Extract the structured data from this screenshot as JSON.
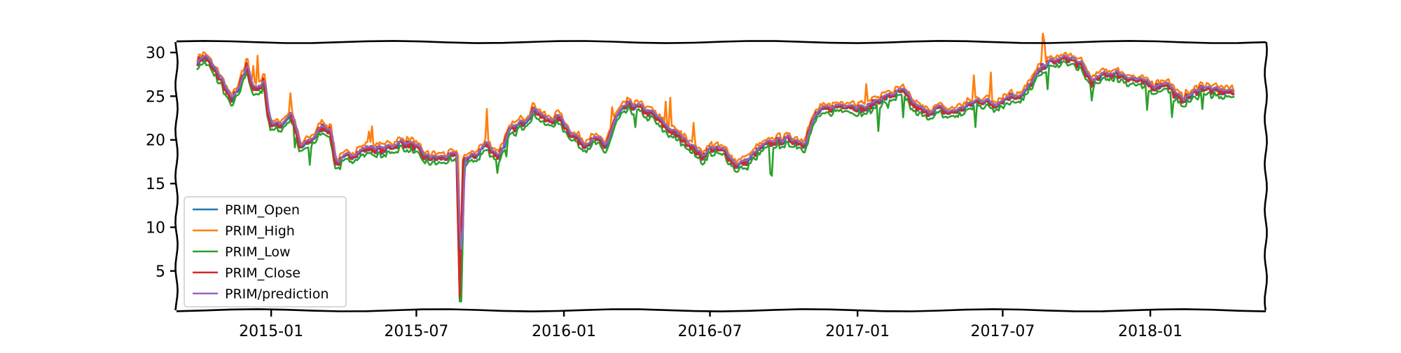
{
  "chart_data": {
    "type": "line",
    "title": "",
    "xlabel": "",
    "ylabel": "",
    "x_range": [
      "2014-09-05",
      "2018-05-25"
    ],
    "ylim": [
      0.5,
      31.2
    ],
    "y_ticks": [
      5,
      10,
      15,
      20,
      25,
      30
    ],
    "x_ticks": [
      "2015-01",
      "2015-07",
      "2016-01",
      "2016-07",
      "2017-01",
      "2017-07",
      "2018-01"
    ],
    "x_tick_dates": [
      "2015-01-01",
      "2015-07-01",
      "2016-01-01",
      "2016-07-01",
      "2017-01-01",
      "2017-07-01",
      "2018-01-01"
    ],
    "grid": false,
    "legend_position": "lower-left",
    "style": "xkcd",
    "colors": {
      "PRIM_Open": "#1f77b4",
      "PRIM_High": "#ff7f0e",
      "PRIM_Low": "#2ca02c",
      "PRIM_Close": "#d62728",
      "PRIM/prediction": "#9467bd"
    },
    "keypoints": [
      [
        "2014-10-01",
        29.0
      ],
      [
        "2014-10-10",
        29.5
      ],
      [
        "2014-10-20",
        28.0
      ],
      [
        "2014-11-01",
        26.5
      ],
      [
        "2014-11-10",
        24.5
      ],
      [
        "2014-11-20",
        25.5
      ],
      [
        "2014-12-01",
        28.5
      ],
      [
        "2014-12-08",
        26.0
      ],
      [
        "2014-12-15",
        25.5
      ],
      [
        "2014-12-22",
        27.0
      ],
      [
        "2014-12-29",
        22.0
      ],
      [
        "2015-01-10",
        21.5
      ],
      [
        "2015-01-25",
        23.0
      ],
      [
        "2015-02-05",
        19.0
      ],
      [
        "2015-02-20",
        20.0
      ],
      [
        "2015-03-05",
        21.5
      ],
      [
        "2015-03-15",
        21.0
      ],
      [
        "2015-03-22",
        17.2
      ],
      [
        "2015-04-05",
        18.0
      ],
      [
        "2015-04-20",
        18.6
      ],
      [
        "2015-05-01",
        19.0
      ],
      [
        "2015-05-20",
        18.8
      ],
      [
        "2015-06-10",
        19.6
      ],
      [
        "2015-06-25",
        19.4
      ],
      [
        "2015-07-10",
        18.0
      ],
      [
        "2015-07-25",
        17.8
      ],
      [
        "2015-08-10",
        18.0
      ],
      [
        "2015-08-20",
        18.0
      ],
      [
        "2015-08-24",
        2.0
      ],
      [
        "2015-08-28",
        17.8
      ],
      [
        "2015-09-10",
        18.0
      ],
      [
        "2015-09-25",
        19.5
      ],
      [
        "2015-10-10",
        18.0
      ],
      [
        "2015-10-25",
        21.0
      ],
      [
        "2015-11-10",
        22.0
      ],
      [
        "2015-11-25",
        23.5
      ],
      [
        "2015-12-10",
        22.0
      ],
      [
        "2015-12-25",
        22.5
      ],
      [
        "2016-01-10",
        20.5
      ],
      [
        "2016-01-25",
        19.5
      ],
      [
        "2016-02-10",
        20.0
      ],
      [
        "2016-02-20",
        19.0
      ],
      [
        "2016-03-05",
        22.5
      ],
      [
        "2016-03-20",
        24.0
      ],
      [
        "2016-04-05",
        23.5
      ],
      [
        "2016-04-20",
        22.8
      ],
      [
        "2016-05-05",
        21.5
      ],
      [
        "2016-05-20",
        20.5
      ],
      [
        "2016-06-05",
        19.5
      ],
      [
        "2016-06-20",
        18.0
      ],
      [
        "2016-07-01",
        19.0
      ],
      [
        "2016-07-20",
        18.5
      ],
      [
        "2016-08-01",
        17.0
      ],
      [
        "2016-08-15",
        17.5
      ],
      [
        "2016-09-01",
        19.0
      ],
      [
        "2016-09-20",
        19.8
      ],
      [
        "2016-10-10",
        20.0
      ],
      [
        "2016-10-25",
        19.5
      ],
      [
        "2016-11-10",
        23.0
      ],
      [
        "2016-11-25",
        23.5
      ],
      [
        "2016-12-15",
        24.0
      ],
      [
        "2017-01-10",
        23.5
      ],
      [
        "2017-01-25",
        24.5
      ],
      [
        "2017-02-10",
        25.0
      ],
      [
        "2017-02-25",
        25.5
      ],
      [
        "2017-03-10",
        24.0
      ],
      [
        "2017-03-25",
        23.0
      ],
      [
        "2017-04-10",
        23.5
      ],
      [
        "2017-04-25",
        23.0
      ],
      [
        "2017-05-10",
        23.5
      ],
      [
        "2017-06-01",
        24.5
      ],
      [
        "2017-06-20",
        24.0
      ],
      [
        "2017-07-10",
        25.0
      ],
      [
        "2017-07-25",
        25.0
      ],
      [
        "2017-08-05",
        26.5
      ],
      [
        "2017-08-20",
        28.5
      ],
      [
        "2017-09-05",
        29.0
      ],
      [
        "2017-09-20",
        29.3
      ],
      [
        "2017-10-05",
        28.5
      ],
      [
        "2017-10-20",
        26.5
      ],
      [
        "2017-11-05",
        27.5
      ],
      [
        "2017-11-20",
        27.5
      ],
      [
        "2017-12-05",
        27.0
      ],
      [
        "2017-12-20",
        26.5
      ],
      [
        "2018-01-05",
        26.0
      ],
      [
        "2018-01-20",
        26.5
      ],
      [
        "2018-02-05",
        24.5
      ],
      [
        "2018-02-20",
        25.0
      ],
      [
        "2018-03-05",
        26.0
      ],
      [
        "2018-03-20",
        25.5
      ],
      [
        "2018-04-05",
        25.5
      ],
      [
        "2018-04-15",
        25.2
      ]
    ],
    "series": [
      {
        "name": "PRIM_Open"
      },
      {
        "name": "PRIM_High"
      },
      {
        "name": "PRIM_Low"
      },
      {
        "name": "PRIM_Close"
      },
      {
        "name": "PRIM/prediction"
      }
    ]
  }
}
